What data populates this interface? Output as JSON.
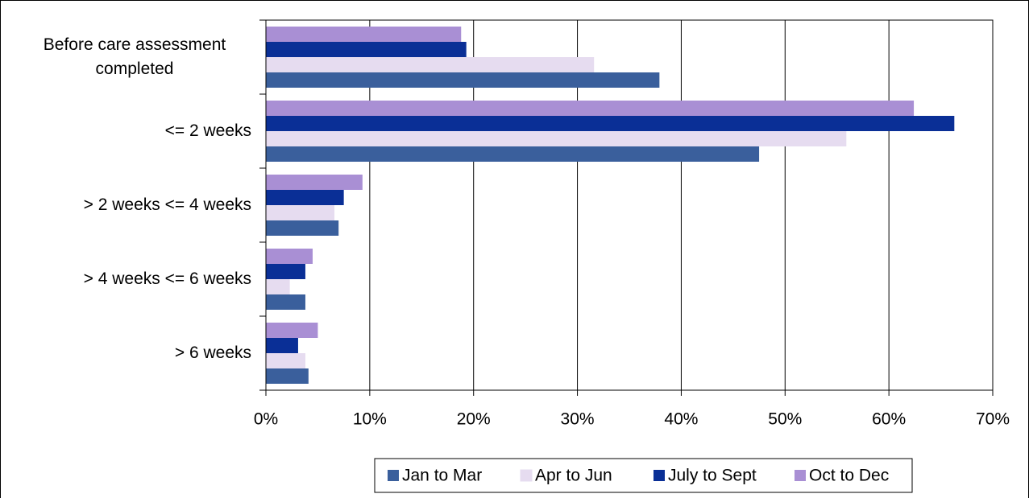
{
  "chart_data": {
    "type": "barh",
    "categories": [
      "Before care assessment completed",
      "<= 2 weeks",
      "> 2 weeks <= 4 weeks",
      "> 4 weeks <= 6 weeks",
      "> 6 weeks"
    ],
    "series": [
      {
        "name": "Jan to Mar",
        "color": "#3a5f9c",
        "values": [
          37.9,
          47.5,
          7.0,
          3.8,
          4.1
        ]
      },
      {
        "name": "Apr to Jun",
        "color": "#e6dcf0",
        "values": [
          31.6,
          55.9,
          6.6,
          2.3,
          3.8
        ]
      },
      {
        "name": "July to Sept",
        "color": "#0a2f96",
        "values": [
          19.3,
          66.3,
          7.5,
          3.8,
          3.1
        ]
      },
      {
        "name": "Oct to Dec",
        "color": "#a98fd4",
        "values": [
          18.8,
          62.4,
          9.3,
          4.5,
          5.0
        ]
      }
    ],
    "xlim": [
      0,
      70
    ],
    "xticks": [
      {
        "value": 0,
        "label": "0%"
      },
      {
        "value": 10,
        "label": "10%"
      },
      {
        "value": 20,
        "label": "20%"
      },
      {
        "value": 30,
        "label": "30%"
      },
      {
        "value": 40,
        "label": "40%"
      },
      {
        "value": 50,
        "label": "50%"
      },
      {
        "value": 60,
        "label": "60%"
      },
      {
        "value": 70,
        "label": "70%"
      }
    ],
    "grid": true,
    "legend": "bottom"
  }
}
